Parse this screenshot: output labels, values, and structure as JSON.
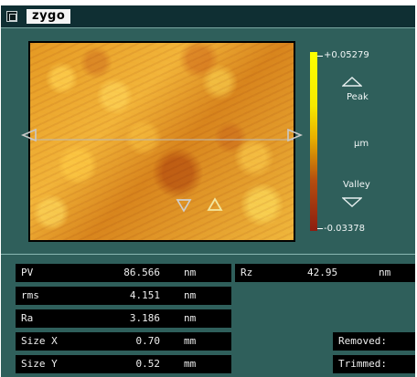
{
  "titlebar": {
    "brand": "zygo",
    "window_menu_icon": "window-menu-icon"
  },
  "colorbar": {
    "max": "+0.05279",
    "min": "-0.03378",
    "peak_label": "Peak",
    "valley_label": "Valley",
    "unit": "µm",
    "colors": [
      "#ffff00",
      "#e8b000",
      "#8d1e10"
    ]
  },
  "stats": {
    "pv": {
      "label": "PV",
      "value": "86.566",
      "unit": "nm"
    },
    "rms": {
      "label": "rms",
      "value": "4.151",
      "unit": "nm"
    },
    "ra": {
      "label": "Ra",
      "value": "3.186",
      "unit": "nm"
    },
    "size_x": {
      "label": "Size X",
      "value": "0.70",
      "unit": "mm"
    },
    "size_y": {
      "label": "Size Y",
      "value": "0.52",
      "unit": "mm"
    },
    "rz": {
      "label": "Rz",
      "value": "42.95",
      "unit": "nm"
    },
    "removed": {
      "label": "Removed:"
    },
    "trimmed": {
      "label": "Trimmed:"
    }
  }
}
